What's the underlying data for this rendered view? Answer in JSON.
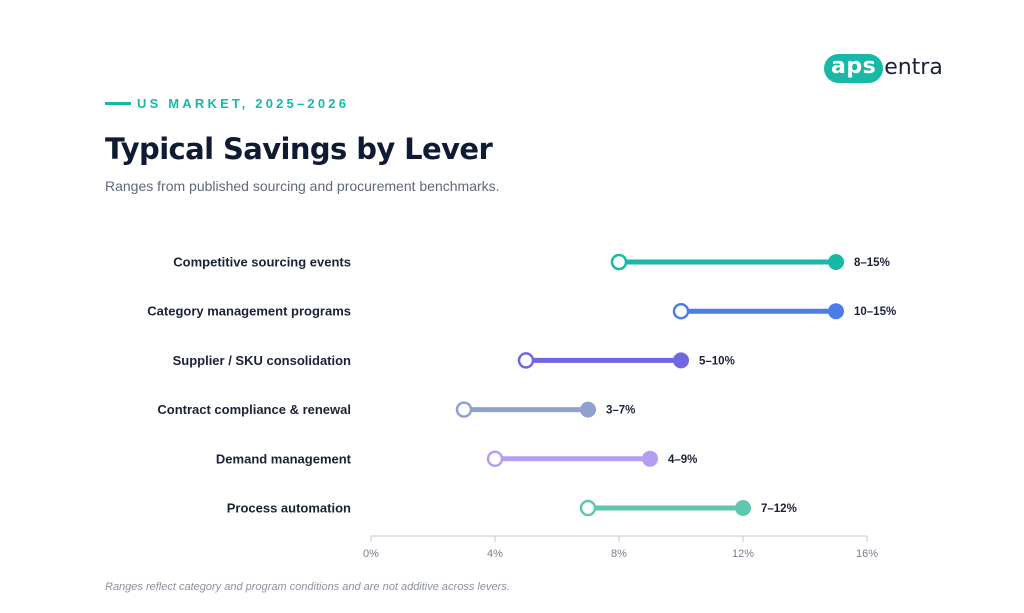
{
  "brand": {
    "logo_pill": "aps",
    "logo_rest": "entra",
    "accent": "#17b9a6"
  },
  "header": {
    "eyebrow": "US MARKET, 2025–2026",
    "title": "Typical Savings by Lever",
    "subtitle": "Ranges from published sourcing and procurement benchmarks."
  },
  "chart_data": {
    "type": "dumbbell",
    "xlim": [
      0,
      16
    ],
    "xticks": [
      0,
      4,
      8,
      12,
      16
    ],
    "xtick_labels": [
      "0%",
      "4%",
      "8%",
      "12%",
      "16%"
    ],
    "grid": false,
    "rows": [
      {
        "label": "Competitive sourcing events",
        "low": 8,
        "high": 15,
        "value_label": "8–15%",
        "color": "#17b9a6"
      },
      {
        "label": "Category management programs",
        "low": 10,
        "high": 15,
        "value_label": "10–15%",
        "color": "#4a7de8"
      },
      {
        "label": "Supplier / SKU consolidation",
        "low": 5,
        "high": 10,
        "value_label": "5–10%",
        "color": "#6f66e2"
      },
      {
        "label": "Contract compliance & renewal",
        "low": 3,
        "high": 7,
        "value_label": "3–7%",
        "color": "#8fa2cf"
      },
      {
        "label": "Demand management",
        "low": 4,
        "high": 9,
        "value_label": "4–9%",
        "color": "#b79df0"
      },
      {
        "label": "Process automation",
        "low": 7,
        "high": 12,
        "value_label": "7–12%",
        "color": "#5ec7ad"
      }
    ]
  },
  "footnote": "Ranges reflect category and program conditions and are not additive across levers."
}
